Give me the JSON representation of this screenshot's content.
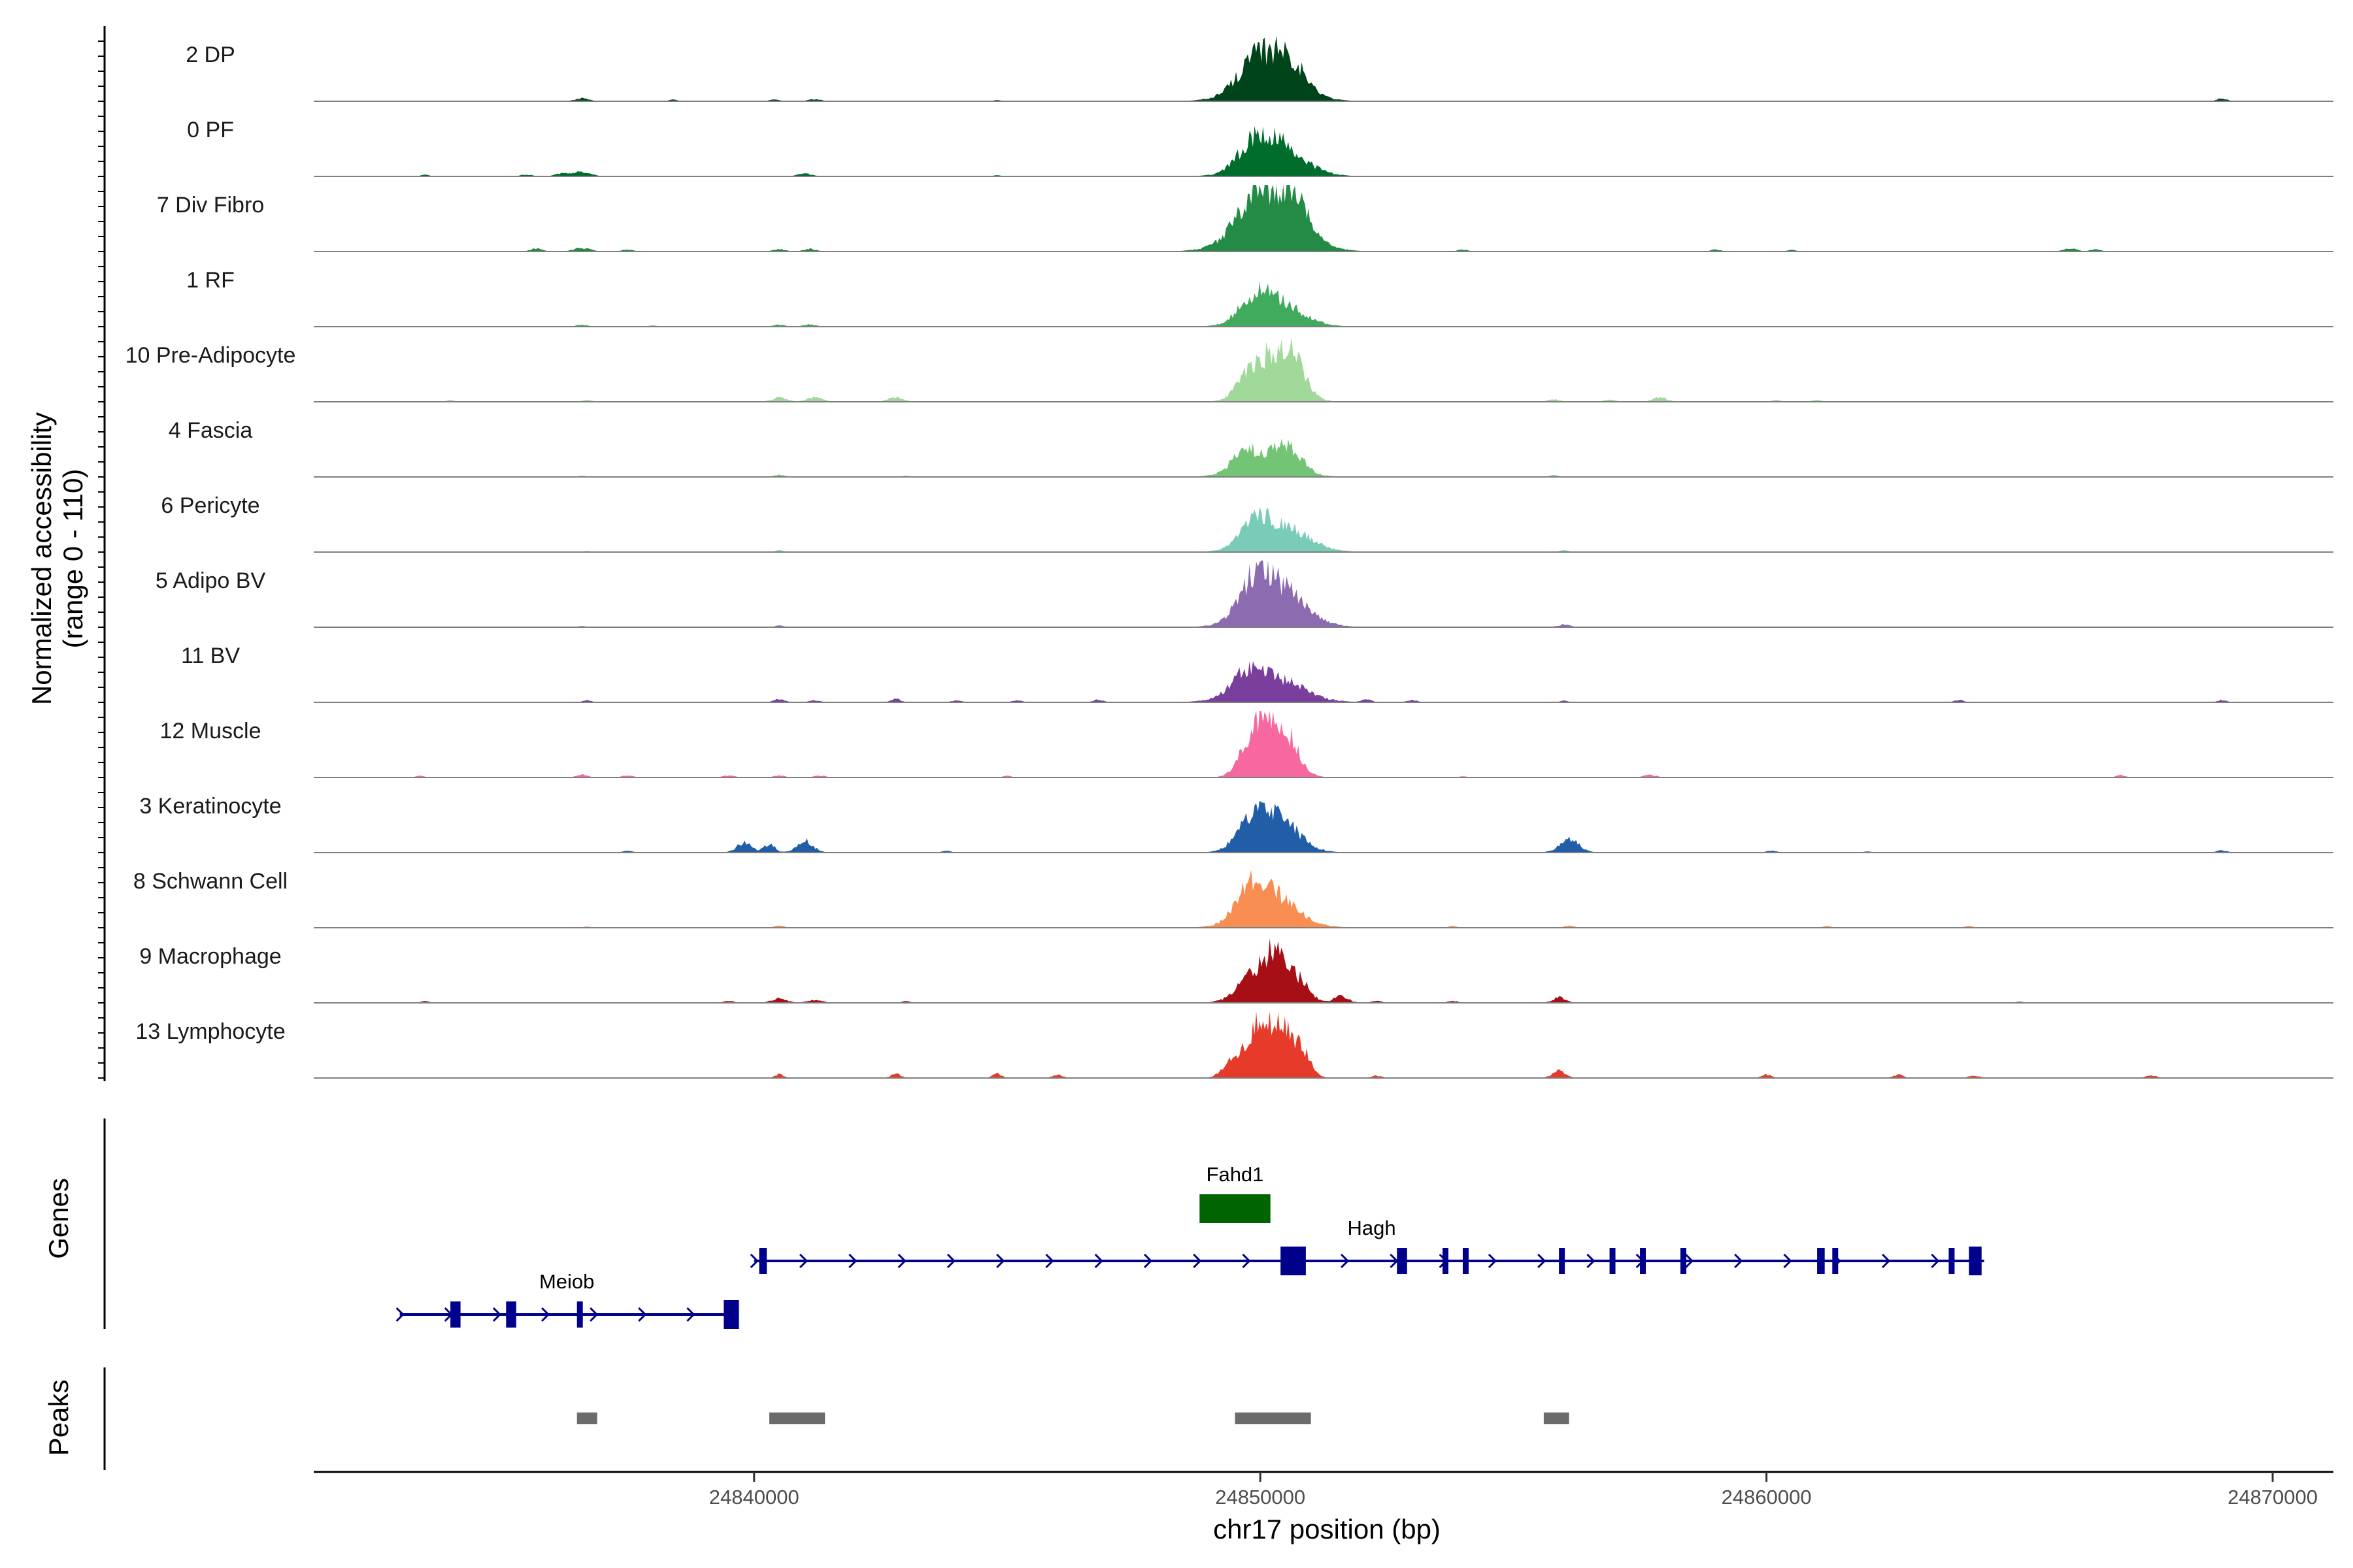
{
  "chart_data": {
    "type": "area",
    "ylabel_line1": "Normalized accessibility",
    "ylabel_line2": "(range 0 - 110)",
    "xlabel": "chr17 position (bp)",
    "ylim": [
      0,
      110
    ],
    "xlim": [
      24831300,
      24871200
    ],
    "x_ticks": [
      24840000,
      24850000,
      24860000,
      24870000
    ],
    "x_tick_labels": [
      "24840000",
      "24850000",
      "24860000",
      "24870000"
    ],
    "tracks": [
      {
        "name": "2 DP",
        "color": "#00441B",
        "peaks": [
          [
            24850200,
            70,
            550
          ],
          [
            24850550,
            45,
            280
          ],
          [
            24849850,
            35,
            300
          ],
          [
            24836600,
            6,
            130
          ],
          [
            24840400,
            3,
            100
          ],
          [
            24841200,
            4,
            120
          ],
          [
            24869000,
            6,
            90
          ],
          [
            24838400,
            3,
            80
          ],
          [
            24844800,
            2,
            80
          ]
        ]
      },
      {
        "name": "0 PF",
        "color": "#006D2C",
        "peaks": [
          [
            24850300,
            68,
            520
          ],
          [
            24849900,
            40,
            300
          ],
          [
            24836600,
            10,
            160
          ],
          [
            24836200,
            6,
            120
          ],
          [
            24835500,
            4,
            100
          ],
          [
            24841000,
            6,
            130
          ],
          [
            24833500,
            3,
            80
          ],
          [
            24844800,
            2,
            70
          ]
        ]
      },
      {
        "name": "7 Div Fibro",
        "color": "#238B45",
        "peaks": [
          [
            24850200,
            90,
            600
          ],
          [
            24850600,
            60,
            320
          ],
          [
            24849800,
            45,
            280
          ],
          [
            24836600,
            8,
            150
          ],
          [
            24835700,
            6,
            110
          ],
          [
            24837500,
            4,
            100
          ],
          [
            24840500,
            5,
            110
          ],
          [
            24841100,
            6,
            110
          ],
          [
            24854000,
            4,
            90
          ],
          [
            24859000,
            4,
            90
          ],
          [
            24866000,
            7,
            120
          ],
          [
            24866500,
            5,
            90
          ],
          [
            24860500,
            3,
            80
          ]
        ]
      },
      {
        "name": "1 RF",
        "color": "#41AB5D",
        "peaks": [
          [
            24850300,
            55,
            480
          ],
          [
            24849850,
            35,
            280
          ],
          [
            24836600,
            4,
            100
          ],
          [
            24840500,
            4,
            100
          ],
          [
            24841100,
            5,
            110
          ],
          [
            24838000,
            2,
            80
          ]
        ]
      },
      {
        "name": "10 Pre-Adipocyte",
        "color": "#A1D99B",
        "peaks": [
          [
            24850300,
            85,
            380
          ],
          [
            24850650,
            55,
            240
          ],
          [
            24849800,
            40,
            260
          ],
          [
            24840500,
            9,
            140
          ],
          [
            24841200,
            10,
            140
          ],
          [
            24842800,
            10,
            140
          ],
          [
            24836700,
            3,
            100
          ],
          [
            24855800,
            5,
            110
          ],
          [
            24857900,
            9,
            130
          ],
          [
            24856900,
            4,
            110
          ],
          [
            24860200,
            3,
            100
          ],
          [
            24861000,
            3,
            100
          ],
          [
            24834000,
            3,
            80
          ]
        ]
      },
      {
        "name": "4 Fascia",
        "color": "#74C476",
        "peaks": [
          [
            24850100,
            45,
            480
          ],
          [
            24850600,
            35,
            260
          ],
          [
            24849650,
            25,
            220
          ],
          [
            24840500,
            4,
            100
          ],
          [
            24836600,
            2,
            80
          ],
          [
            24855800,
            3,
            90
          ],
          [
            24843000,
            2,
            70
          ]
        ]
      },
      {
        "name": "6 Pericyte",
        "color": "#7ACCB8",
        "peaks": [
          [
            24850400,
            55,
            520
          ],
          [
            24849900,
            40,
            280
          ],
          [
            24840500,
            3,
            90
          ],
          [
            24856000,
            3,
            90
          ],
          [
            24836700,
            2,
            70
          ]
        ]
      },
      {
        "name": "5 Adipo BV",
        "color": "#8C6BB1",
        "peaks": [
          [
            24850300,
            90,
            520
          ],
          [
            24849850,
            50,
            280
          ],
          [
            24856000,
            6,
            110
          ],
          [
            24840500,
            3,
            80
          ],
          [
            24836600,
            2,
            70
          ]
        ]
      },
      {
        "name": "11 BV",
        "color": "#7A3E9D",
        "peaks": [
          [
            24850200,
            55,
            580
          ],
          [
            24849700,
            30,
            260
          ],
          [
            24840500,
            7,
            100
          ],
          [
            24842800,
            7,
            90
          ],
          [
            24841200,
            4,
            100
          ],
          [
            24846800,
            6,
            90
          ],
          [
            24845200,
            4,
            90
          ],
          [
            24844000,
            4,
            90
          ],
          [
            24836700,
            4,
            80
          ],
          [
            24853000,
            5,
            90
          ],
          [
            24852100,
            6,
            90
          ],
          [
            24863800,
            5,
            80
          ],
          [
            24869000,
            5,
            80
          ],
          [
            24856000,
            3,
            70
          ]
        ]
      },
      {
        "name": "12 Muscle",
        "color": "#F768A1",
        "peaks": [
          [
            24850100,
            85,
            300
          ],
          [
            24850500,
            72,
            260
          ],
          [
            24849800,
            45,
            220
          ],
          [
            24836600,
            6,
            100
          ],
          [
            24837500,
            4,
            100
          ],
          [
            24840500,
            4,
            100
          ],
          [
            24839500,
            4,
            110
          ],
          [
            24841300,
            4,
            100
          ],
          [
            24845000,
            3,
            80
          ],
          [
            24857700,
            6,
            110
          ],
          [
            24867000,
            5,
            80
          ],
          [
            24833400,
            3,
            80
          ],
          [
            24854000,
            2,
            80
          ]
        ]
      },
      {
        "name": "3 Keratinocyte",
        "color": "#225EA8",
        "peaks": [
          [
            24850300,
            75,
            420
          ],
          [
            24849800,
            45,
            280
          ],
          [
            24839800,
            22,
            140
          ],
          [
            24840300,
            18,
            110
          ],
          [
            24841000,
            25,
            160
          ],
          [
            24856100,
            28,
            190
          ],
          [
            24837500,
            3,
            100
          ],
          [
            24843800,
            3,
            90
          ],
          [
            24860100,
            4,
            90
          ],
          [
            24869000,
            5,
            90
          ],
          [
            24862000,
            2,
            80
          ]
        ]
      },
      {
        "name": "8 Schwann Cell",
        "color": "#F98E52",
        "peaks": [
          [
            24850200,
            70,
            500
          ],
          [
            24849800,
            45,
            260
          ],
          [
            24840500,
            4,
            90
          ],
          [
            24853800,
            3,
            80
          ],
          [
            24856100,
            4,
            90
          ],
          [
            24861200,
            3,
            80
          ],
          [
            24864000,
            3,
            80
          ],
          [
            24836700,
            2,
            70
          ]
        ]
      },
      {
        "name": "9 Macrophage",
        "color": "#A50F15",
        "peaks": [
          [
            24850300,
            100,
            260
          ],
          [
            24849800,
            45,
            300
          ],
          [
            24850800,
            35,
            200
          ],
          [
            24851600,
            15,
            140
          ],
          [
            24840500,
            10,
            140
          ],
          [
            24841200,
            6,
            140
          ],
          [
            24855900,
            12,
            120
          ],
          [
            24839500,
            4,
            90
          ],
          [
            24852300,
            4,
            90
          ],
          [
            24853800,
            4,
            90
          ],
          [
            24843000,
            3,
            80
          ],
          [
            24833500,
            3,
            80
          ],
          [
            24865000,
            2,
            80
          ]
        ]
      },
      {
        "name": "13 Lymphocyte",
        "color": "#E63A2A",
        "peaks": [
          [
            24850350,
            105,
            240
          ],
          [
            24849900,
            90,
            220
          ],
          [
            24850800,
            55,
            180
          ],
          [
            24849400,
            35,
            160
          ],
          [
            24840500,
            8,
            80
          ],
          [
            24842800,
            9,
            90
          ],
          [
            24844800,
            10,
            80
          ],
          [
            24846000,
            7,
            90
          ],
          [
            24855900,
            18,
            120
          ],
          [
            24852300,
            5,
            90
          ],
          [
            24860000,
            7,
            90
          ],
          [
            24862600,
            7,
            90
          ],
          [
            24864100,
            6,
            90
          ],
          [
            24867600,
            6,
            90
          ]
        ]
      }
    ],
    "genes": [
      {
        "name": "Meiob",
        "start": 24833000,
        "end": 24839700,
        "row": 2,
        "color": "#00008B",
        "exons": [
          [
            24834000,
            24834200
          ],
          [
            24835100,
            24835300
          ],
          [
            24836500,
            24836560
          ],
          [
            24839400,
            24839700
          ]
        ]
      },
      {
        "name": "Hagh",
        "start": 24840000,
        "end": 24864300,
        "row": 1,
        "color": "#00008B",
        "exons": [
          [
            24840100,
            24840250
          ],
          [
            24850400,
            24850900
          ],
          [
            24852700,
            24852900
          ],
          [
            24853600,
            24853660
          ],
          [
            24854000,
            24854060
          ],
          [
            24855900,
            24856000
          ],
          [
            24856900,
            24856960
          ],
          [
            24857500,
            24857600
          ],
          [
            24858300,
            24858400
          ],
          [
            24861000,
            24861150
          ],
          [
            24861300,
            24861400
          ],
          [
            24863600,
            24863660
          ],
          [
            24864000,
            24864250
          ]
        ]
      },
      {
        "name": "Fahd1",
        "start": 24848800,
        "end": 24850200,
        "row": 0,
        "color": "#006400",
        "exons": [
          [
            24848800,
            24850200
          ]
        ]
      }
    ],
    "peaks_track": [
      [
        24836500,
        24836900
      ],
      [
        24840300,
        24841400
      ],
      [
        24849500,
        24851000
      ],
      [
        24855600,
        24856100
      ]
    ],
    "panel_labels": {
      "genes": "Genes",
      "peaks": "Peaks"
    },
    "peak_color": "#6B6B6B"
  }
}
